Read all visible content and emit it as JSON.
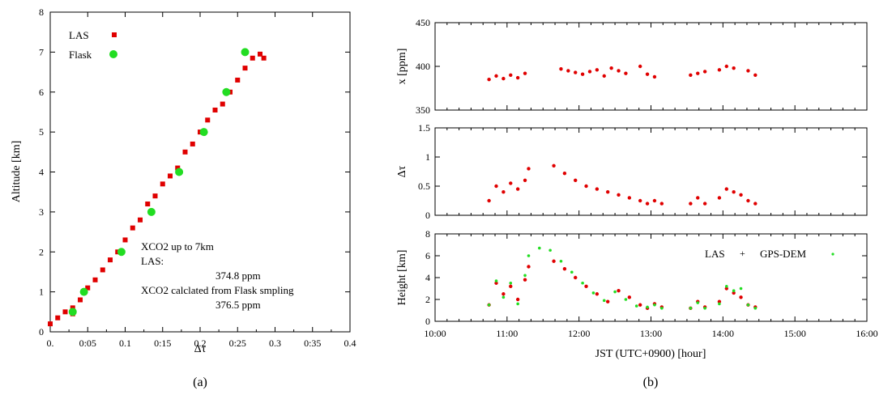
{
  "figure": {
    "panel_a_caption": "(a)",
    "panel_b_caption": "(b)"
  },
  "colors": {
    "las": "#e00000",
    "flask": "#22dd22",
    "gps": "#22dd22",
    "axis": "#000000"
  },
  "chart_data": [
    {
      "id": "a",
      "type": "scatter",
      "xlabel": "Δτ",
      "ylabel": "Altitude [km]",
      "xlim": [
        0,
        0.4
      ],
      "ylim": [
        0,
        8
      ],
      "x_ticks": [
        0,
        0.05,
        0.1,
        0.15,
        0.2,
        0.25,
        0.3,
        0.35,
        0.4
      ],
      "x_tick_labels": [
        "0.",
        "0:05",
        "0.1",
        "0:15",
        "0.2",
        "0:25",
        "0.3",
        "0:35",
        "0.4"
      ],
      "y_ticks": [
        0,
        1,
        2,
        3,
        4,
        5,
        6,
        7,
        8
      ],
      "y_tick_labels": [
        "0",
        "1",
        "2",
        "3",
        "4",
        "5",
        "6",
        "7",
        "8"
      ],
      "legend": {
        "position": "top-left",
        "entries": [
          "LAS",
          "Flask"
        ]
      },
      "annotation": [
        "XCO2 up to 7km",
        "LAS:",
        "374.8 ppm",
        "XCO2 calclated from Flask smpling",
        "376.5 ppm"
      ],
      "series": [
        {
          "name": "LAS",
          "marker": "square",
          "x": [
            0.0,
            0.01,
            0.02,
            0.03,
            0.03,
            0.04,
            0.05,
            0.06,
            0.07,
            0.08,
            0.09,
            0.1,
            0.11,
            0.12,
            0.13,
            0.14,
            0.15,
            0.16,
            0.17,
            0.18,
            0.19,
            0.2,
            0.21,
            0.22,
            0.23,
            0.24,
            0.25,
            0.26,
            0.27,
            0.28,
            0.285
          ],
          "y": [
            0.2,
            0.35,
            0.5,
            0.45,
            0.6,
            0.8,
            1.1,
            1.3,
            1.55,
            1.8,
            2.0,
            2.3,
            2.6,
            2.8,
            3.2,
            3.4,
            3.7,
            3.9,
            4.1,
            4.5,
            4.7,
            5.0,
            5.3,
            5.55,
            5.7,
            6.0,
            6.3,
            6.6,
            6.85,
            6.95,
            6.85
          ]
        },
        {
          "name": "Flask",
          "marker": "circle",
          "x": [
            0.03,
            0.045,
            0.095,
            0.135,
            0.172,
            0.205,
            0.235,
            0.26
          ],
          "y": [
            0.5,
            1.0,
            2.0,
            3.0,
            4.0,
            5.0,
            6.0,
            7.0
          ]
        }
      ]
    },
    {
      "id": "b1",
      "type": "scatter",
      "ylabel": "x [ppm]",
      "xlim": [
        10,
        16
      ],
      "ylim": [
        350,
        450
      ],
      "y_ticks": [
        350,
        400,
        450
      ],
      "y_tick_labels": [
        "350",
        "400",
        "450"
      ],
      "series": [
        {
          "name": "LAS",
          "x": [
            10.75,
            10.85,
            10.95,
            11.05,
            11.15,
            11.25,
            11.75,
            11.85,
            11.95,
            12.05,
            12.15,
            12.25,
            12.35,
            12.45,
            12.55,
            12.65,
            12.85,
            12.95,
            13.05,
            13.55,
            13.65,
            13.75,
            13.95,
            14.05,
            14.15,
            14.35,
            14.45
          ],
          "y": [
            385,
            389,
            386,
            390,
            387,
            392,
            397,
            395,
            393,
            391,
            394,
            396,
            389,
            398,
            395,
            392,
            400,
            391,
            388,
            390,
            392,
            394,
            396,
            400,
            398,
            395,
            390
          ]
        }
      ]
    },
    {
      "id": "b2",
      "type": "scatter",
      "ylabel": "Δτ",
      "xlim": [
        10,
        16
      ],
      "ylim": [
        0,
        1.5
      ],
      "y_ticks": [
        0,
        0.5,
        1,
        1.5
      ],
      "y_tick_labels": [
        "0",
        "0.5",
        "1",
        "1.5"
      ],
      "series": [
        {
          "name": "LAS",
          "x": [
            10.75,
            10.85,
            10.95,
            11.05,
            11.15,
            11.25,
            11.3,
            11.65,
            11.8,
            11.95,
            12.1,
            12.25,
            12.4,
            12.55,
            12.7,
            12.85,
            12.95,
            13.05,
            13.15,
            13.55,
            13.65,
            13.75,
            13.95,
            14.05,
            14.15,
            14.25,
            14.35,
            14.45
          ],
          "y": [
            0.25,
            0.5,
            0.4,
            0.55,
            0.45,
            0.6,
            0.8,
            0.85,
            0.72,
            0.6,
            0.5,
            0.45,
            0.4,
            0.35,
            0.3,
            0.25,
            0.2,
            0.25,
            0.2,
            0.2,
            0.3,
            0.2,
            0.3,
            0.45,
            0.4,
            0.35,
            0.25,
            0.2
          ]
        }
      ]
    },
    {
      "id": "b3",
      "type": "scatter",
      "ylabel": "Height [km]",
      "xlabel": "JST (UTC+0900) [hour]",
      "xlim": [
        10,
        16
      ],
      "ylim": [
        0,
        8
      ],
      "y_ticks": [
        0,
        2,
        4,
        6,
        8
      ],
      "y_tick_labels": [
        "0",
        "2",
        "4",
        "6",
        "8"
      ],
      "x_ticks": [
        10,
        11,
        12,
        13,
        14,
        15,
        16
      ],
      "x_tick_labels": [
        "10:00",
        "11:00",
        "12:00",
        "13:00",
        "14:00",
        "15:00",
        "16:00"
      ],
      "legend": {
        "position": "top-right",
        "entries": [
          "LAS",
          "GPS-DEM"
        ]
      },
      "series": [
        {
          "name": "LAS",
          "x": [
            10.75,
            10.85,
            10.95,
            11.05,
            11.15,
            11.25,
            11.3,
            11.65,
            11.8,
            11.95,
            12.1,
            12.25,
            12.4,
            12.55,
            12.7,
            12.85,
            12.95,
            13.05,
            13.15,
            13.55,
            13.65,
            13.75,
            13.95,
            14.05,
            14.15,
            14.25,
            14.35,
            14.45
          ],
          "y": [
            1.5,
            3.5,
            2.5,
            3.2,
            2.0,
            3.8,
            5.0,
            5.5,
            4.8,
            4.0,
            3.2,
            2.5,
            1.8,
            2.8,
            2.2,
            1.5,
            1.2,
            1.6,
            1.3,
            1.2,
            1.8,
            1.3,
            1.8,
            3.0,
            2.6,
            2.2,
            1.5,
            1.3
          ]
        },
        {
          "name": "GPS-DEM",
          "x": [
            10.75,
            10.85,
            10.95,
            11.05,
            11.15,
            11.25,
            11.3,
            11.45,
            11.6,
            11.75,
            11.9,
            12.05,
            12.2,
            12.35,
            12.5,
            12.65,
            12.8,
            12.95,
            13.05,
            13.15,
            13.55,
            13.65,
            13.75,
            13.95,
            14.05,
            14.15,
            14.25,
            14.35,
            14.45
          ],
          "y": [
            1.5,
            3.7,
            2.2,
            3.5,
            1.6,
            4.2,
            6.0,
            6.7,
            6.5,
            5.5,
            4.5,
            3.5,
            2.6,
            1.9,
            2.7,
            2.0,
            1.4,
            1.3,
            1.5,
            1.2,
            1.2,
            1.7,
            1.2,
            1.6,
            3.2,
            2.8,
            3.0,
            1.5,
            1.2
          ]
        }
      ]
    }
  ]
}
